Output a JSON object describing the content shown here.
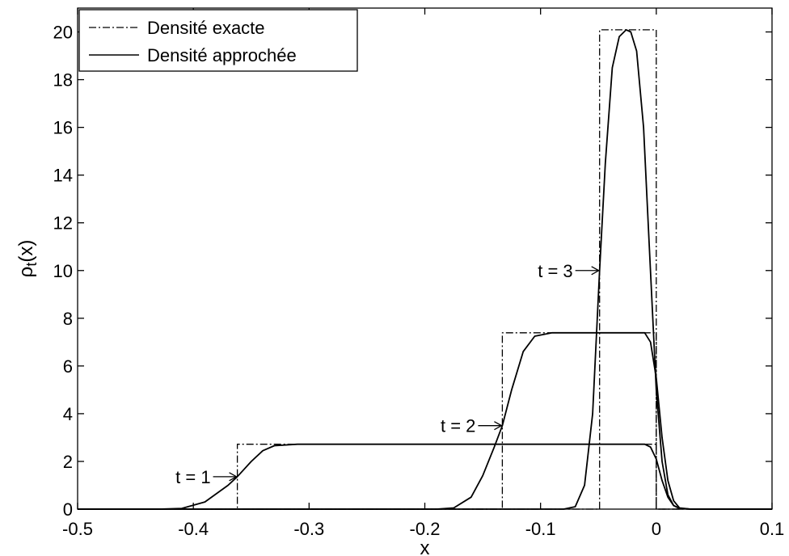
{
  "chart_data": {
    "type": "line",
    "title": "",
    "xlabel": "x",
    "ylabel_main": "ρ",
    "ylabel_sub": "t",
    "ylabel_tail": "(x)",
    "xlim": [
      -0.5,
      0.1
    ],
    "ylim": [
      0,
      21
    ],
    "xticks": [
      "-0.5",
      "-0.4",
      "-0.3",
      "-0.2",
      "-0.1",
      "0",
      "0.1"
    ],
    "xtick_values": [
      -0.5,
      -0.4,
      -0.3,
      -0.2,
      -0.1,
      0,
      0.1
    ],
    "yticks": [
      "0",
      "2",
      "4",
      "6",
      "8",
      "10",
      "12",
      "14",
      "16",
      "18",
      "20"
    ],
    "ytick_values": [
      0,
      2,
      4,
      6,
      8,
      10,
      12,
      14,
      16,
      18,
      20
    ],
    "grid": false,
    "legend_position": "top-left",
    "legend": [
      {
        "label": "Densité exacte",
        "style": "dash-dot"
      },
      {
        "label": "Densité approchée",
        "style": "solid"
      }
    ],
    "series": [
      {
        "name": "Densité exacte",
        "time": 1,
        "style": "dash-dot",
        "x": [
          -0.5,
          -0.362,
          -0.362,
          0,
          0,
          0.1
        ],
        "y": [
          0,
          0,
          2.72,
          2.72,
          0,
          0
        ]
      },
      {
        "name": "Densité exacte",
        "time": 2,
        "style": "dash-dot",
        "x": [
          -0.5,
          -0.133,
          -0.133,
          0,
          0,
          0.1
        ],
        "y": [
          0,
          0,
          7.39,
          7.39,
          0,
          0
        ]
      },
      {
        "name": "Densité exacte",
        "time": 3,
        "style": "dash-dot",
        "x": [
          -0.5,
          -0.049,
          -0.049,
          0,
          0,
          0.1
        ],
        "y": [
          0,
          0,
          20.09,
          20.09,
          0,
          0
        ]
      },
      {
        "name": "Densité approchée",
        "time": 1,
        "style": "solid",
        "x": [
          -0.5,
          -0.43,
          -0.41,
          -0.39,
          -0.37,
          -0.362,
          -0.35,
          -0.34,
          -0.33,
          -0.31,
          -0.2,
          -0.1,
          -0.01,
          -0.005,
          0,
          0.005,
          0.01,
          0.015,
          0.02,
          0.03,
          0.1
        ],
        "y": [
          0,
          0,
          0.03,
          0.3,
          1.0,
          1.36,
          2.0,
          2.45,
          2.66,
          2.72,
          2.72,
          2.72,
          2.72,
          2.6,
          2.1,
          1.2,
          0.5,
          0.15,
          0.03,
          0,
          0
        ]
      },
      {
        "name": "Densité approchée",
        "time": 2,
        "style": "solid",
        "x": [
          -0.5,
          -0.19,
          -0.175,
          -0.16,
          -0.15,
          -0.14,
          -0.133,
          -0.125,
          -0.115,
          -0.105,
          -0.09,
          -0.07,
          -0.01,
          -0.005,
          0,
          0.005,
          0.01,
          0.015,
          0.02,
          0.03,
          0.1
        ],
        "y": [
          0,
          0,
          0.05,
          0.5,
          1.4,
          2.6,
          3.5,
          5.0,
          6.6,
          7.25,
          7.39,
          7.39,
          7.39,
          7.0,
          5.5,
          3.0,
          1.2,
          0.35,
          0.05,
          0,
          0
        ]
      },
      {
        "name": "Densité approchée",
        "time": 3,
        "style": "solid",
        "x": [
          -0.5,
          -0.08,
          -0.07,
          -0.062,
          -0.055,
          -0.049,
          -0.044,
          -0.038,
          -0.032,
          -0.026,
          -0.022,
          -0.017,
          -0.011,
          -0.006,
          0,
          0.005,
          0.01,
          0.015,
          0.02,
          0.03,
          0.1
        ],
        "y": [
          0,
          0,
          0.1,
          1.0,
          4.0,
          10.0,
          14.5,
          18.5,
          19.8,
          20.09,
          20.0,
          19.2,
          16.0,
          11.0,
          5.0,
          2.0,
          0.6,
          0.15,
          0.03,
          0,
          0
        ]
      }
    ],
    "annotations": [
      {
        "label": "t = 1",
        "x": -0.362,
        "y": 1.36
      },
      {
        "label": "t = 2",
        "x": -0.133,
        "y": 3.5
      },
      {
        "label": "t = 3",
        "x": -0.049,
        "y": 10.0
      }
    ]
  }
}
